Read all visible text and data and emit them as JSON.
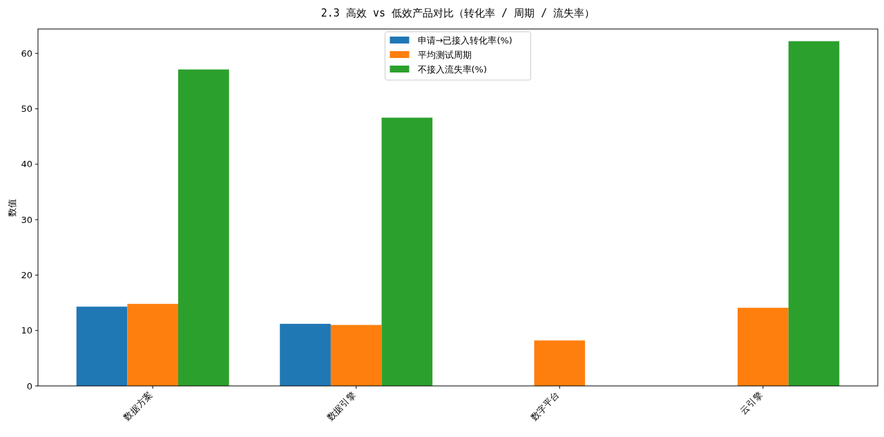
{
  "chart_data": {
    "type": "bar",
    "title": "2.3 高效 vs 低效产品对比（转化率 / 周期 / 流失率）",
    "ylabel": "数值",
    "categories": [
      "数据方案",
      "数据引擎",
      "数字平台",
      "云引擎"
    ],
    "series": [
      {
        "name": "申请→已接入转化率(%)",
        "color": "#1f77b4",
        "values": [
          14.3,
          11.2,
          null,
          null
        ]
      },
      {
        "name": "平均测试周期",
        "color": "#ff7f0e",
        "values": [
          14.8,
          11.0,
          8.2,
          14.1
        ]
      },
      {
        "name": "不接入流失率(%)",
        "color": "#2ca02c",
        "values": [
          57.1,
          48.4,
          null,
          62.2
        ]
      }
    ],
    "ylim": [
      0,
      64.4
    ],
    "yticks": [
      0,
      10,
      20,
      30,
      40,
      50,
      60
    ],
    "legend": "top"
  }
}
